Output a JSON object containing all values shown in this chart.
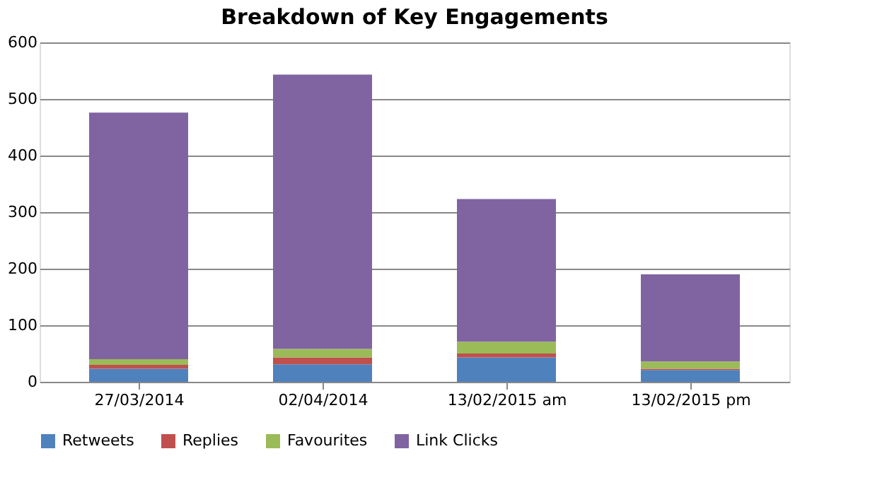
{
  "chart_data": {
    "type": "bar",
    "title": "Breakdown of Key Engagements",
    "categories": [
      "27/03/2014",
      "02/04/2014",
      "13/02/2015 am",
      "13/02/2015 pm"
    ],
    "series": [
      {
        "name": "Retweets",
        "color": "#4f81bd",
        "values": [
          23,
          31,
          43,
          21
        ]
      },
      {
        "name": "Replies",
        "color": "#c0504d",
        "values": [
          7,
          12,
          7,
          2
        ]
      },
      {
        "name": "Favourites",
        "color": "#9bbb59",
        "values": [
          10,
          15,
          21,
          13
        ]
      },
      {
        "name": "Link Clicks",
        "color": "#8064a2",
        "values": [
          436,
          485,
          252,
          154
        ]
      }
    ],
    "stacked": true,
    "ylim": [
      0,
      600
    ],
    "yticks": [
      0,
      100,
      200,
      300,
      400,
      500,
      600
    ],
    "grid": "y",
    "legend": "bottom"
  }
}
